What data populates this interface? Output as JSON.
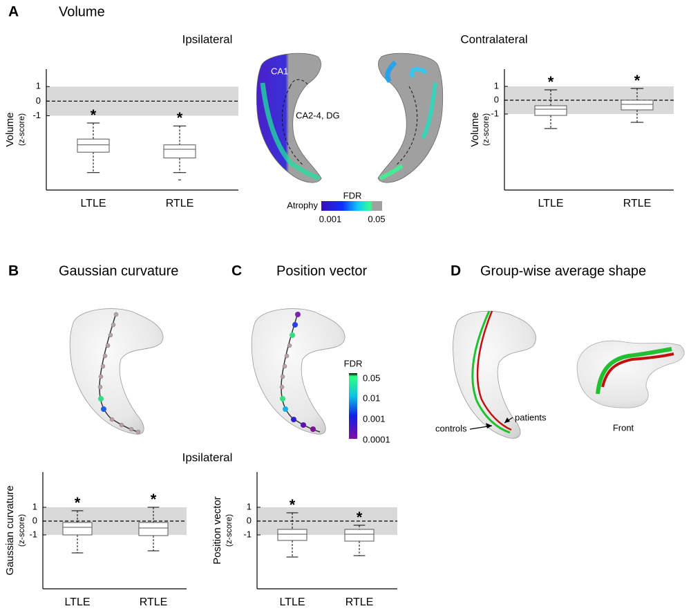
{
  "panels": [
    {
      "letter": "A",
      "title": "Volume"
    },
    {
      "letter": "B",
      "title": "Gaussian curvature"
    },
    {
      "letter": "C",
      "title": "Position vector"
    },
    {
      "letter": "D",
      "title": "Group-wise average shape"
    }
  ],
  "volume_map": {
    "regions": [
      "CA1",
      "CA2-4, DG"
    ],
    "colorbar": {
      "title": "FDR",
      "label": "Atrophy",
      "ticks": [
        "0.001",
        "0.05"
      ]
    }
  },
  "profile_colorbar": {
    "title": "FDR",
    "ticks": [
      "0.05",
      "0.01",
      "0.001",
      "0.0001"
    ]
  },
  "lower_label": "Ipsilateral",
  "shape_labels": {
    "controls": "controls",
    "patients": "patients",
    "view": "Front"
  },
  "chart_data": [
    {
      "type": "box",
      "title": "Ipsilateral",
      "ylabel": "Volume",
      "ylabel_sub": "(z-score)",
      "categories": [
        "LTLE",
        "RTLE"
      ],
      "boxes": [
        {
          "whislo": -4.9,
          "q1": -3.5,
          "med": -3.0,
          "q3": -2.6,
          "whishi": -1.5
        },
        {
          "whislo": -4.9,
          "q1": -3.9,
          "med": -3.3,
          "q3": -3.0,
          "whishi": -1.7,
          "fliers": [
            -5.4
          ]
        }
      ],
      "markers": [
        "*",
        "*"
      ],
      "ylim": [
        -6.1,
        2.2
      ],
      "yticks": [
        1,
        0,
        -1
      ],
      "band": [
        -1,
        1
      ],
      "refline": 0
    },
    {
      "type": "box",
      "title": "Contralateral",
      "ylabel": "Volume",
      "ylabel_sub": "(z-score)",
      "categories": [
        "LTLE",
        "RTLE"
      ],
      "boxes": [
        {
          "whislo": -2.05,
          "q1": -1.1,
          "med": -0.65,
          "q3": -0.4,
          "whishi": 0.75
        },
        {
          "whislo": -1.6,
          "q1": -0.7,
          "med": -0.3,
          "q3": 0,
          "whishi": 0.85
        }
      ],
      "markers": [
        "*",
        "*"
      ],
      "ylim": [
        -6.5,
        2.25
      ],
      "yticks": [
        1,
        0,
        -1
      ],
      "band": [
        -1,
        1
      ],
      "refline": 0
    },
    {
      "type": "box",
      "ylabel": "Gaussian curvature",
      "ylabel_sub": "(z-score)",
      "categories": [
        "LTLE",
        "RTLE"
      ],
      "boxes": [
        {
          "whislo": -2.3,
          "q1": -1.0,
          "med": -0.45,
          "q3": -0.1,
          "whishi": 0.75
        },
        {
          "whislo": -2.15,
          "q1": -1.05,
          "med": -0.5,
          "q3": -0.1,
          "whishi": 1.0
        }
      ],
      "markers": [
        "*",
        "*"
      ],
      "ylim": [
        -4.9,
        3.55
      ],
      "yticks": [
        1,
        0,
        -1
      ],
      "band": [
        -1,
        1
      ],
      "refline": 0
    },
    {
      "type": "box",
      "ylabel": "Position vector",
      "ylabel_sub": "(z-score)",
      "categories": [
        "LTLE",
        "RTLE"
      ],
      "boxes": [
        {
          "whislo": -2.6,
          "q1": -1.4,
          "med": -0.95,
          "q3": -0.6,
          "whishi": 0.6
        },
        {
          "whislo": -2.5,
          "q1": -1.45,
          "med": -0.95,
          "q3": -0.6,
          "whishi": -0.3
        }
      ],
      "markers": [
        "*",
        "*"
      ],
      "ylim": [
        -4.9,
        3.55
      ],
      "yticks": [
        1,
        0,
        -1
      ],
      "band": [
        -1,
        1
      ],
      "refline": 0
    }
  ]
}
